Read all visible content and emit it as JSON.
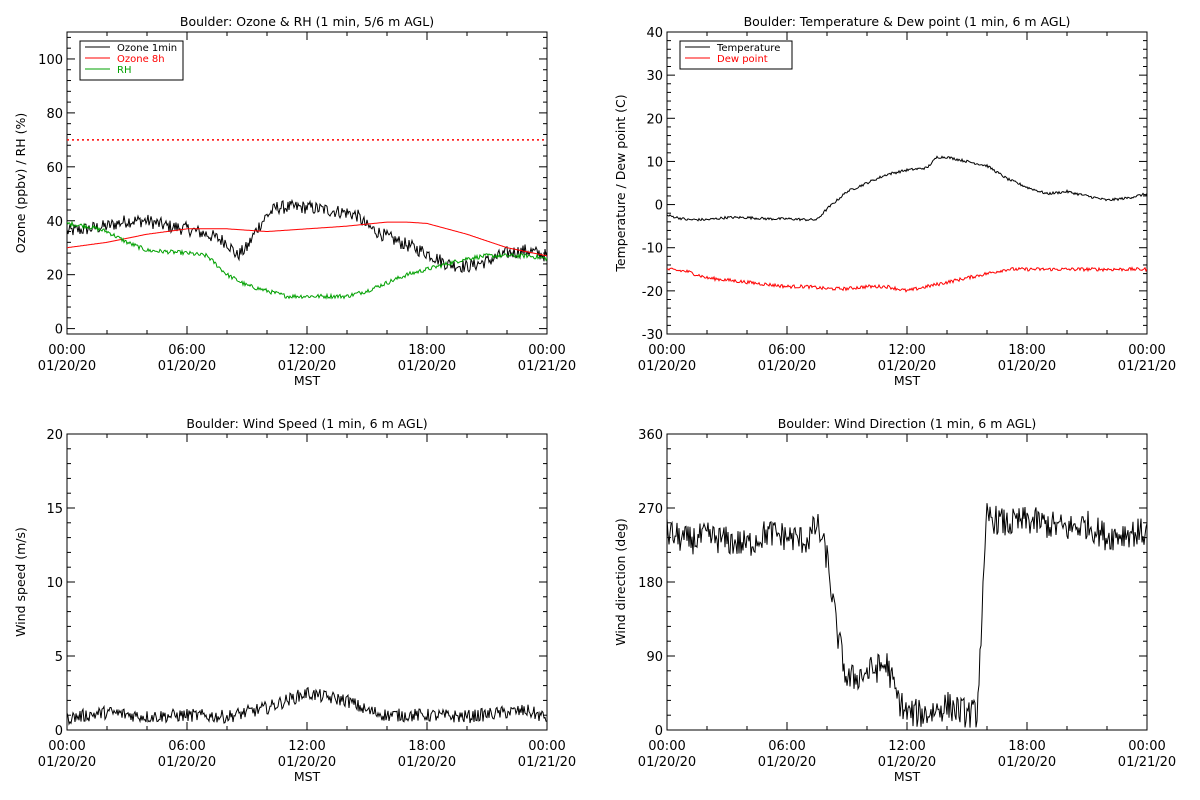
{
  "chart_data": [
    {
      "type": "line",
      "title": "Boulder: Ozone & RH (1 min, 5/6 m AGL)",
      "ylabel": "Ozone (ppbv) / RH (%)",
      "xlabel": "MST",
      "xticks": [
        {
          "time": "00:00",
          "date": "01/20/20"
        },
        {
          "time": "06:00",
          "date": "01/20/20"
        },
        {
          "time": "12:00",
          "date": "01/20/20"
        },
        {
          "time": "18:00",
          "date": "01/20/20"
        },
        {
          "time": "00:00",
          "date": "01/21/20"
        }
      ],
      "xrange_hours": [
        0,
        24
      ],
      "ylim": [
        -2,
        110
      ],
      "yticks": [
        0,
        20,
        40,
        60,
        80,
        100
      ],
      "grid": false,
      "legend": "top-left",
      "reference_line": {
        "value": 70,
        "color": "#ff0000",
        "style": "dotted"
      },
      "series": [
        {
          "name": "Ozone 1min",
          "color": "#000000",
          "noise": 2.5,
          "points": [
            [
              0,
              36
            ],
            [
              1,
              37
            ],
            [
              2,
              38
            ],
            [
              3,
              40
            ],
            [
              4,
              40
            ],
            [
              5,
              38
            ],
            [
              6,
              37
            ],
            [
              7,
              35
            ],
            [
              8,
              32
            ],
            [
              8.5,
              27
            ],
            [
              9,
              30
            ],
            [
              9.5,
              37
            ],
            [
              10,
              42
            ],
            [
              10.5,
              45
            ],
            [
              11,
              45
            ],
            [
              12,
              45
            ],
            [
              13,
              44
            ],
            [
              14,
              43
            ],
            [
              14.5,
              42
            ],
            [
              15,
              38
            ],
            [
              16,
              34
            ],
            [
              17,
              31
            ],
            [
              18,
              28
            ],
            [
              19,
              24
            ],
            [
              20,
              23
            ],
            [
              21,
              25
            ],
            [
              22,
              28
            ],
            [
              23,
              29
            ],
            [
              24,
              27
            ]
          ]
        },
        {
          "name": "Ozone 8h",
          "color": "#ff0000",
          "noise": 0,
          "points": [
            [
              0,
              30
            ],
            [
              2,
              32
            ],
            [
              4,
              35
            ],
            [
              6,
              37
            ],
            [
              8,
              37
            ],
            [
              10,
              36
            ],
            [
              12,
              37
            ],
            [
              14,
              38
            ],
            [
              16,
              39.5
            ],
            [
              17,
              39.5
            ],
            [
              18,
              39
            ],
            [
              20,
              35
            ],
            [
              22,
              30
            ],
            [
              24,
              27
            ]
          ]
        },
        {
          "name": "RH",
          "color": "#00a000",
          "noise": 0.8,
          "points": [
            [
              0,
              39
            ],
            [
              1,
              38
            ],
            [
              2,
              36
            ],
            [
              3,
              32
            ],
            [
              4,
              29
            ],
            [
              6,
              28
            ],
            [
              7,
              27
            ],
            [
              8,
              20
            ],
            [
              9,
              16
            ],
            [
              10,
              14
            ],
            [
              11,
              12
            ],
            [
              12,
              12
            ],
            [
              13,
              12
            ],
            [
              14,
              12
            ],
            [
              15,
              14
            ],
            [
              16,
              17
            ],
            [
              17,
              20
            ],
            [
              18,
              22
            ],
            [
              19,
              24
            ],
            [
              20,
              26
            ],
            [
              21,
              27
            ],
            [
              22,
              27
            ],
            [
              23,
              27
            ],
            [
              24,
              26
            ]
          ]
        }
      ]
    },
    {
      "type": "line",
      "title": "Boulder: Temperature & Dew point (1 min, 6 m AGL)",
      "ylabel": "Temperature / Dew point (C)",
      "xlabel": "MST",
      "xticks": [
        {
          "time": "00:00",
          "date": "01/20/20"
        },
        {
          "time": "06:00",
          "date": "01/20/20"
        },
        {
          "time": "12:00",
          "date": "01/20/20"
        },
        {
          "time": "18:00",
          "date": "01/20/20"
        },
        {
          "time": "00:00",
          "date": "01/21/20"
        }
      ],
      "xrange_hours": [
        0,
        24
      ],
      "ylim": [
        -30,
        40
      ],
      "yticks": [
        -30,
        -20,
        -10,
        0,
        10,
        20,
        30,
        40
      ],
      "grid": false,
      "legend": "top-left",
      "series": [
        {
          "name": "Temperature",
          "color": "#000000",
          "noise": 0.3,
          "points": [
            [
              0,
              -2.5
            ],
            [
              1,
              -3.5
            ],
            [
              2,
              -3.5
            ],
            [
              3,
              -3
            ],
            [
              4,
              -3
            ],
            [
              5,
              -3.3
            ],
            [
              6,
              -3.3
            ],
            [
              7,
              -3.5
            ],
            [
              7.5,
              -3.5
            ],
            [
              8,
              -1
            ],
            [
              9,
              3
            ],
            [
              10,
              5
            ],
            [
              11,
              7
            ],
            [
              12,
              8
            ],
            [
              13,
              8.5
            ],
            [
              13.5,
              11
            ],
            [
              14,
              11
            ],
            [
              15,
              10
            ],
            [
              16,
              9
            ],
            [
              17,
              6
            ],
            [
              18,
              4
            ],
            [
              19,
              2.5
            ],
            [
              20,
              3
            ],
            [
              21,
              2
            ],
            [
              22,
              1
            ],
            [
              23,
              1.5
            ],
            [
              24,
              2.5
            ]
          ]
        },
        {
          "name": "Dew point",
          "color": "#ff0000",
          "noise": 0.4,
          "points": [
            [
              0,
              -15
            ],
            [
              1,
              -15.5
            ],
            [
              2,
              -17
            ],
            [
              3,
              -17.5
            ],
            [
              4,
              -18
            ],
            [
              5,
              -18.5
            ],
            [
              6,
              -19
            ],
            [
              7,
              -19
            ],
            [
              8,
              -19.5
            ],
            [
              9,
              -19.5
            ],
            [
              10,
              -19
            ],
            [
              11,
              -19
            ],
            [
              12,
              -20
            ],
            [
              13,
              -19
            ],
            [
              14,
              -18
            ],
            [
              15,
              -17
            ],
            [
              16,
              -16
            ],
            [
              17,
              -15
            ],
            [
              18,
              -15
            ],
            [
              19,
              -15
            ],
            [
              20,
              -15
            ],
            [
              21,
              -15
            ],
            [
              22,
              -15
            ],
            [
              23,
              -15
            ],
            [
              24,
              -15
            ]
          ]
        }
      ]
    },
    {
      "type": "line",
      "title": "Boulder: Wind Speed (1 min, 6 m AGL)",
      "ylabel": "Wind speed (m/s)",
      "xlabel": "MST",
      "xticks": [
        {
          "time": "00:00",
          "date": "01/20/20"
        },
        {
          "time": "06:00",
          "date": "01/20/20"
        },
        {
          "time": "12:00",
          "date": "01/20/20"
        },
        {
          "time": "18:00",
          "date": "01/20/20"
        },
        {
          "time": "00:00",
          "date": "01/21/20"
        }
      ],
      "xrange_hours": [
        0,
        24
      ],
      "ylim": [
        0,
        20
      ],
      "yticks": [
        0,
        5,
        10,
        15,
        20
      ],
      "grid": false,
      "series": [
        {
          "color": "#000000",
          "noise": 0.45,
          "floor": 0,
          "points": [
            [
              0,
              0.8
            ],
            [
              2,
              1.2
            ],
            [
              4,
              0.9
            ],
            [
              6,
              1.0
            ],
            [
              8,
              0.9
            ],
            [
              10,
              1.5
            ],
            [
              11,
              2.0
            ],
            [
              12,
              2.5
            ],
            [
              13,
              2.2
            ],
            [
              14,
              2.0
            ],
            [
              15,
              1.3
            ],
            [
              16,
              1.0
            ],
            [
              18,
              1.0
            ],
            [
              20,
              0.9
            ],
            [
              22,
              1.2
            ],
            [
              23,
              1.3
            ],
            [
              24,
              0.8
            ]
          ]
        }
      ]
    },
    {
      "type": "line",
      "title": "Boulder: Wind Direction (1 min, 6 m AGL)",
      "ylabel": "Wind direction (deg)",
      "xlabel": "MST",
      "xticks": [
        {
          "time": "00:00",
          "date": "01/20/20"
        },
        {
          "time": "06:00",
          "date": "01/20/20"
        },
        {
          "time": "12:00",
          "date": "01/20/20"
        },
        {
          "time": "18:00",
          "date": "01/20/20"
        },
        {
          "time": "00:00",
          "date": "01/21/20"
        }
      ],
      "xrange_hours": [
        0,
        24
      ],
      "ylim": [
        0,
        360
      ],
      "yticks": [
        0,
        90,
        180,
        270,
        360
      ],
      "grid": false,
      "series": [
        {
          "color": "#000000",
          "noise": 18,
          "floor": 0,
          "ceil": 360,
          "points": [
            [
              0,
              240
            ],
            [
              1,
              230
            ],
            [
              2,
              235
            ],
            [
              3,
              230
            ],
            [
              4,
              225
            ],
            [
              5,
              240
            ],
            [
              6,
              235
            ],
            [
              7,
              230
            ],
            [
              7.5,
              250
            ],
            [
              8,
              210
            ],
            [
              8.5,
              120
            ],
            [
              9,
              60
            ],
            [
              10,
              70
            ],
            [
              11,
              80
            ],
            [
              11.5,
              40
            ],
            [
              12,
              20
            ],
            [
              13,
              20
            ],
            [
              14,
              30
            ],
            [
              15,
              20
            ],
            [
              15.5,
              20
            ],
            [
              16,
              260
            ],
            [
              17,
              250
            ],
            [
              18,
              255
            ],
            [
              19,
              250
            ],
            [
              20,
              245
            ],
            [
              21,
              250
            ],
            [
              22,
              235
            ],
            [
              23,
              240
            ],
            [
              24,
              240
            ]
          ]
        }
      ]
    }
  ]
}
